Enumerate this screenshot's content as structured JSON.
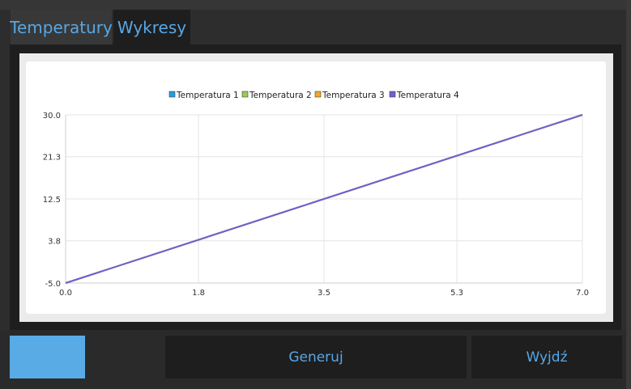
{
  "tabs": [
    {
      "label": "Temperatury",
      "active": false
    },
    {
      "label": "Wykresy",
      "active": true
    }
  ],
  "buttons": {
    "primary_label": "",
    "generate_label": "Generuj",
    "exit_label": "Wyjdź"
  },
  "colors": {
    "accent": "#57a7e6",
    "primary_button": "#59abe6"
  },
  "chart_data": {
    "type": "line",
    "title": "",
    "xlabel": "",
    "ylabel": "",
    "xlim": [
      0.0,
      7.0
    ],
    "ylim": [
      -5.0,
      30.0
    ],
    "x_ticks": [
      "0.0",
      "1.8",
      "3.5",
      "5.3",
      "7.0"
    ],
    "y_ticks": [
      "30.0",
      "21.3",
      "12.5",
      "3.8",
      "-5.0"
    ],
    "grid": true,
    "legend_position": "top-center",
    "series": [
      {
        "name": "Temperatura 1",
        "color": "#209fdf",
        "x": [
          0,
          7
        ],
        "y": [
          -5,
          30
        ]
      },
      {
        "name": "Temperatura 2",
        "color": "#99ca53",
        "x": [
          0,
          7
        ],
        "y": [
          -5,
          30
        ]
      },
      {
        "name": "Temperatura 3",
        "color": "#f6a625",
        "x": [
          0,
          7
        ],
        "y": [
          -5,
          30
        ]
      },
      {
        "name": "Temperatura 4",
        "color": "#6d5fd5",
        "x": [
          0,
          7
        ],
        "y": [
          -5,
          30
        ]
      }
    ]
  }
}
